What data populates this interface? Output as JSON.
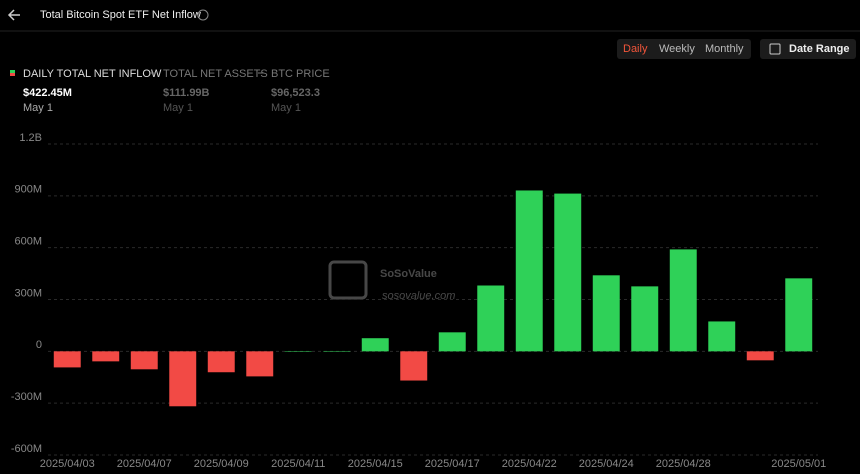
{
  "header": {
    "title": "Total Bitcoin Spot ETF Net Inflow"
  },
  "controls": {
    "periods": [
      "Daily",
      "Weekly",
      "Monthly"
    ],
    "active_period": "Daily",
    "date_range": "Date Range"
  },
  "legend": [
    {
      "name": "DAILY TOTAL NET INFLOW",
      "value": "$422.45M",
      "date": "May 1"
    },
    {
      "name": "TOTAL NET ASSETS",
      "value": "$111.99B",
      "date": "May 1"
    },
    {
      "name": "BTC PRICE",
      "value": "$96,523.3",
      "date": "May 1"
    }
  ],
  "watermark": {
    "name": "SoSoValue",
    "url": "sosovalue.com"
  },
  "chart_data": {
    "type": "bar",
    "categories": [
      "2025/04/03",
      null,
      "2025/04/07",
      null,
      "2025/04/09",
      null,
      "2025/04/11",
      null,
      "2025/04/15",
      null,
      "2025/04/17",
      null,
      "2025/04/22",
      null,
      "2025/04/24",
      null,
      "2025/04/28",
      null,
      null,
      "2025/05/01"
    ],
    "values": [
      -93,
      -58,
      -104,
      -318,
      -121,
      -145,
      1,
      2,
      76,
      -169,
      110,
      381,
      931,
      913,
      440,
      376,
      590,
      173,
      -52,
      422.45
    ],
    "positive_color": "#2fd158",
    "negative_color": "#f24a45",
    "ylim": [
      -600,
      1200
    ],
    "yticks": [
      {
        "value": -600,
        "label": "-600M"
      },
      {
        "value": -300,
        "label": "-300M"
      },
      0,
      {
        "value": 300,
        "label": "300M"
      },
      {
        "value": 600,
        "label": "600M"
      },
      {
        "value": 900,
        "label": "900M"
      },
      {
        "value": 1200,
        "label": "1.2B"
      }
    ],
    "grid": true
  }
}
